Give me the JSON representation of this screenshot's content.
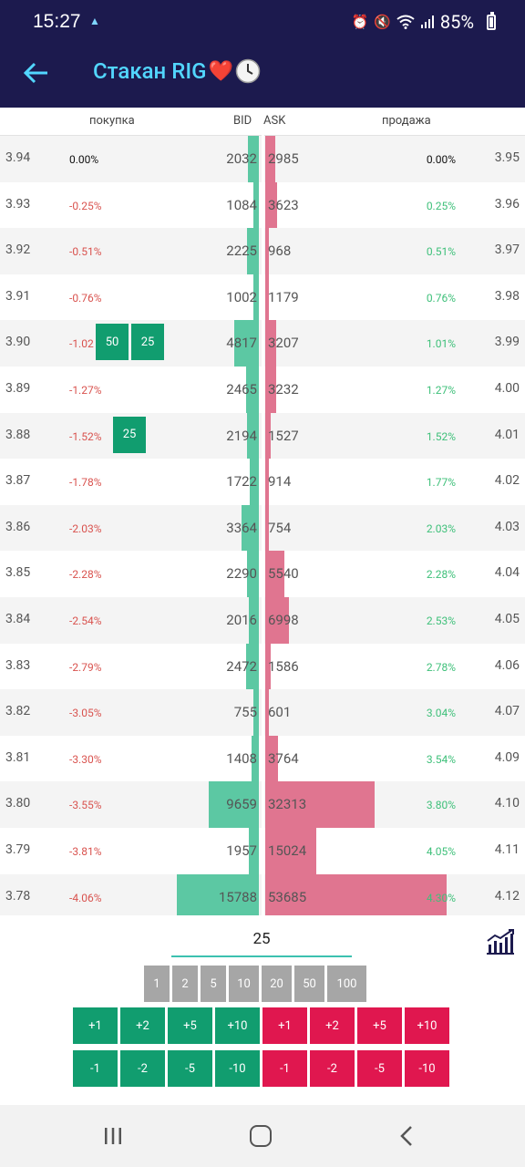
{
  "status_bar": {
    "time": "15:27",
    "battery": "85%",
    "icons": [
      "notification-icon",
      "alarm-icon",
      "mute-icon",
      "wifi-icon",
      "signal-icon",
      "battery-icon"
    ]
  },
  "app_bar": {
    "title": "Стакан RIG",
    "title_emoji": "❤️"
  },
  "book_header": {
    "buy": "покупка",
    "bid": "BID",
    "ask": "ASK",
    "sell": "продажа"
  },
  "rows": [
    {
      "bid_price": "3.94",
      "bid_pct": "0.00%",
      "bid_vol": "2032",
      "ask_vol": "2985",
      "ask_pct": "0.00%",
      "ask_price": "3.95"
    },
    {
      "bid_price": "3.93",
      "bid_pct": "-0.25%",
      "bid_vol": "1084",
      "ask_vol": "3623",
      "ask_pct": "0.25%",
      "ask_price": "3.96"
    },
    {
      "bid_price": "3.92",
      "bid_pct": "-0.51%",
      "bid_vol": "2225",
      "ask_vol": "968",
      "ask_pct": "0.51%",
      "ask_price": "3.97"
    },
    {
      "bid_price": "3.91",
      "bid_pct": "-0.76%",
      "bid_vol": "1002",
      "ask_vol": "1179",
      "ask_pct": "0.76%",
      "ask_price": "3.98"
    },
    {
      "bid_price": "3.90",
      "bid_pct": "-1.02",
      "bid_vol": "4817",
      "ask_vol": "3207",
      "ask_pct": "1.01%",
      "ask_price": "3.99",
      "orders": [
        "50",
        "25"
      ]
    },
    {
      "bid_price": "3.89",
      "bid_pct": "-1.27%",
      "bid_vol": "2465",
      "ask_vol": "3232",
      "ask_pct": "1.27%",
      "ask_price": "4.00"
    },
    {
      "bid_price": "3.88",
      "bid_pct": "-1.52%",
      "bid_vol": "2194",
      "ask_vol": "1527",
      "ask_pct": "1.52%",
      "ask_price": "4.01",
      "orders": [
        "25"
      ]
    },
    {
      "bid_price": "3.87",
      "bid_pct": "-1.78%",
      "bid_vol": "1722",
      "ask_vol": "914",
      "ask_pct": "1.77%",
      "ask_price": "4.02"
    },
    {
      "bid_price": "3.86",
      "bid_pct": "-2.03%",
      "bid_vol": "3364",
      "ask_vol": "754",
      "ask_pct": "2.03%",
      "ask_price": "4.03"
    },
    {
      "bid_price": "3.85",
      "bid_pct": "-2.28%",
      "bid_vol": "2290",
      "ask_vol": "5540",
      "ask_pct": "2.28%",
      "ask_price": "4.04"
    },
    {
      "bid_price": "3.84",
      "bid_pct": "-2.54%",
      "bid_vol": "2016",
      "ask_vol": "6998",
      "ask_pct": "2.53%",
      "ask_price": "4.05"
    },
    {
      "bid_price": "3.83",
      "bid_pct": "-2.79%",
      "bid_vol": "2472",
      "ask_vol": "1586",
      "ask_pct": "2.78%",
      "ask_price": "4.06"
    },
    {
      "bid_price": "3.82",
      "bid_pct": "-3.05%",
      "bid_vol": "755",
      "ask_vol": "601",
      "ask_pct": "3.04%",
      "ask_price": "4.07"
    },
    {
      "bid_price": "3.81",
      "bid_pct": "-3.30%",
      "bid_vol": "1408",
      "ask_vol": "3764",
      "ask_pct": "3.54%",
      "ask_price": "4.09"
    },
    {
      "bid_price": "3.80",
      "bid_pct": "-3.55%",
      "bid_vol": "9659",
      "ask_vol": "32313",
      "ask_pct": "3.80%",
      "ask_price": "4.10"
    },
    {
      "bid_price": "3.79",
      "bid_pct": "-3.81%",
      "bid_vol": "1957",
      "ask_vol": "15024",
      "ask_pct": "4.05%",
      "ask_price": "4.11"
    },
    {
      "bid_price": "3.78",
      "bid_pct": "-4.06%",
      "bid_vol": "15788",
      "ask_vol": "53685",
      "ask_pct": "4.30%",
      "ask_price": "4.12"
    }
  ],
  "controls": {
    "quantity": "25",
    "presets": [
      "1",
      "2",
      "5",
      "10",
      "20",
      "50",
      "100"
    ],
    "buy_plus": [
      "+1",
      "+2",
      "+5",
      "+10"
    ],
    "sell_plus": [
      "+1",
      "+2",
      "+5",
      "+10"
    ],
    "buy_minus": [
      "-1",
      "-2",
      "-5",
      "-10"
    ],
    "sell_minus": [
      "-1",
      "-2",
      "-5",
      "-10"
    ]
  },
  "colors": {
    "bar_bg": "#1c1a4e",
    "title": "#52d6ff",
    "bid_bar": "#5cc8a3",
    "ask_bar": "#e07590",
    "buy": "#119d6f",
    "sell": "#e0174f",
    "preset": "#a6a6a6"
  }
}
